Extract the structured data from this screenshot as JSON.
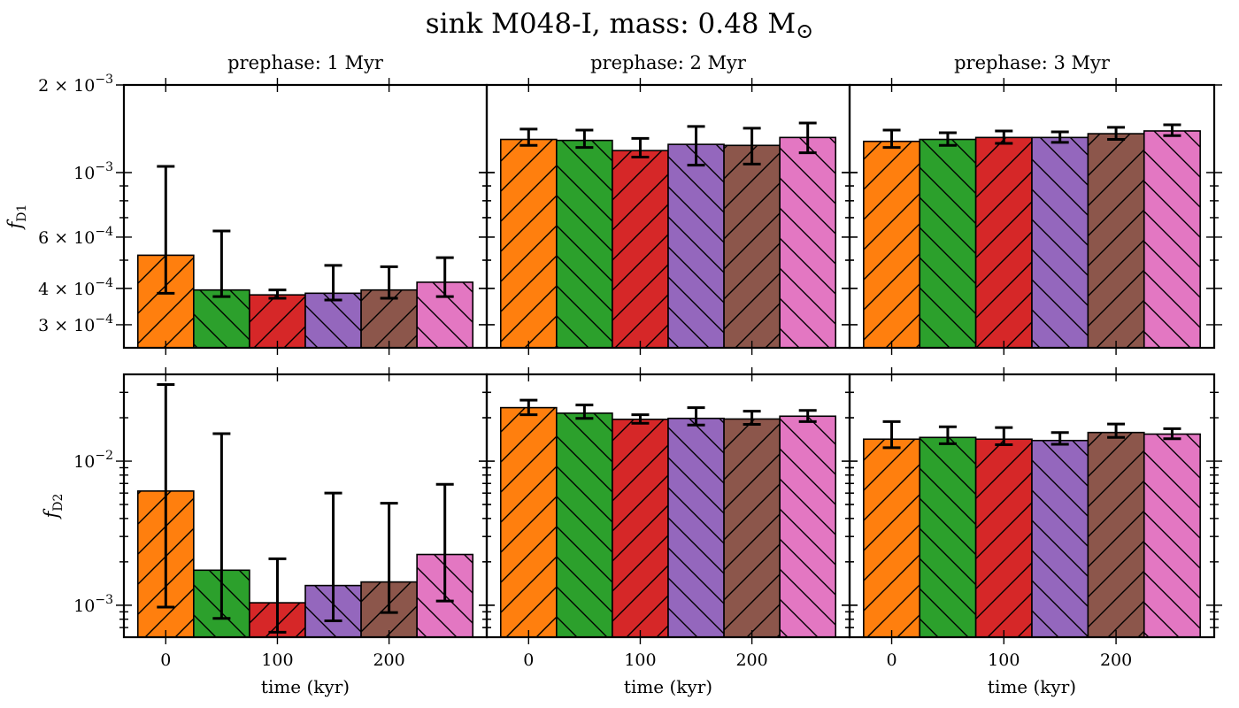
{
  "figure": {
    "title_text": "sink M048-I, mass: 0.48 M",
    "title_symbol": "⊙"
  },
  "chart_data": {
    "type": "bar",
    "bar_colors": [
      "#ff7f0e",
      "#2ca02c",
      "#d62728",
      "#9467bd",
      "#8c564b",
      "#e377c2"
    ],
    "x_tick_values": [
      0,
      100,
      200
    ],
    "x_tick_labels": [
      "0",
      "100",
      "200"
    ],
    "xlabel": "time (kyr)",
    "yscale": "log",
    "columns": [
      {
        "title": "prephase: 1 Myr"
      },
      {
        "title": "prephase: 2 Myr"
      },
      {
        "title": "prephase: 3 Myr"
      }
    ],
    "rows": [
      {
        "ylabel_main": "f",
        "ylabel_sub": "D1",
        "ylim": [
          0.00025,
          0.002
        ],
        "tick_labels": [
          {
            "value": 0.002,
            "mant": "2 × 10",
            "exp": "−3"
          },
          {
            "value": 0.001,
            "mant": "10",
            "exp": "−3"
          },
          {
            "value": 0.0006,
            "mant": "6 × 10",
            "exp": "−4"
          },
          {
            "value": 0.0004,
            "mant": "4 × 10",
            "exp": "−4"
          },
          {
            "value": 0.0003,
            "mant": "3 × 10",
            "exp": "−4"
          }
        ],
        "minor_ticks": [
          0.0005,
          0.0007,
          0.0008,
          0.0009
        ]
      },
      {
        "ylabel_main": "f",
        "ylabel_sub": "D2",
        "ylim": [
          0.0006,
          0.04
        ],
        "tick_labels": [
          {
            "value": 0.01,
            "mant": "10",
            "exp": "−2"
          },
          {
            "value": 0.001,
            "mant": "10",
            "exp": "−3"
          }
        ],
        "minor_ticks": [
          0.0007,
          0.0008,
          0.0009,
          0.002,
          0.003,
          0.004,
          0.005,
          0.006,
          0.007,
          0.008,
          0.009,
          0.02,
          0.03
        ]
      }
    ],
    "panels": [
      {
        "row": 0,
        "col": 0,
        "x": [
          0,
          50,
          100,
          150,
          200,
          250
        ],
        "values": [
          0.00052,
          0.000395,
          0.00038,
          0.000385,
          0.000395,
          0.00042
        ],
        "err_low": [
          0.000385,
          0.000375,
          0.00037,
          0.000365,
          0.00037,
          0.000375
        ],
        "err_high": [
          0.00105,
          0.00063,
          0.000395,
          0.00048,
          0.000475,
          0.00051
        ]
      },
      {
        "row": 0,
        "col": 1,
        "x": [
          0,
          50,
          100,
          150,
          200,
          250
        ],
        "values": [
          0.0013,
          0.00129,
          0.00119,
          0.00125,
          0.00124,
          0.00132
        ],
        "err_low": [
          0.00124,
          0.00122,
          0.00113,
          0.00106,
          0.00107,
          0.00117
        ],
        "err_high": [
          0.00141,
          0.0014,
          0.00131,
          0.00144,
          0.00142,
          0.00148
        ]
      },
      {
        "row": 0,
        "col": 2,
        "x": [
          0,
          50,
          100,
          150,
          200,
          250
        ],
        "values": [
          0.00128,
          0.0013,
          0.00132,
          0.00132,
          0.00136,
          0.00139
        ],
        "err_low": [
          0.00122,
          0.00124,
          0.00126,
          0.00127,
          0.0013,
          0.00134
        ],
        "err_high": [
          0.0014,
          0.00137,
          0.00139,
          0.00138,
          0.00143,
          0.00146
        ]
      },
      {
        "row": 1,
        "col": 0,
        "x": [
          0,
          50,
          100,
          150,
          200,
          250
        ],
        "values": [
          0.0062,
          0.00175,
          0.00104,
          0.00137,
          0.00145,
          0.00225
        ],
        "err_low": [
          0.00097,
          0.00081,
          0.00065,
          0.00078,
          0.00089,
          0.00107
        ],
        "err_high": [
          0.034,
          0.0155,
          0.0021,
          0.006,
          0.0051,
          0.0069
        ]
      },
      {
        "row": 1,
        "col": 1,
        "x": [
          0,
          50,
          100,
          150,
          200,
          250
        ],
        "values": [
          0.0235,
          0.0215,
          0.0195,
          0.0198,
          0.0196,
          0.0205
        ],
        "err_low": [
          0.021,
          0.0198,
          0.0183,
          0.0178,
          0.018,
          0.0188
        ],
        "err_high": [
          0.0265,
          0.0245,
          0.021,
          0.0235,
          0.0222,
          0.0225
        ]
      },
      {
        "row": 1,
        "col": 2,
        "x": [
          0,
          50,
          100,
          150,
          200,
          250
        ],
        "values": [
          0.0142,
          0.0146,
          0.0142,
          0.0139,
          0.0158,
          0.0154
        ],
        "err_low": [
          0.0124,
          0.0132,
          0.013,
          0.0131,
          0.0146,
          0.0143
        ],
        "err_high": [
          0.0188,
          0.0173,
          0.0171,
          0.0158,
          0.0181,
          0.0168
        ]
      }
    ]
  }
}
